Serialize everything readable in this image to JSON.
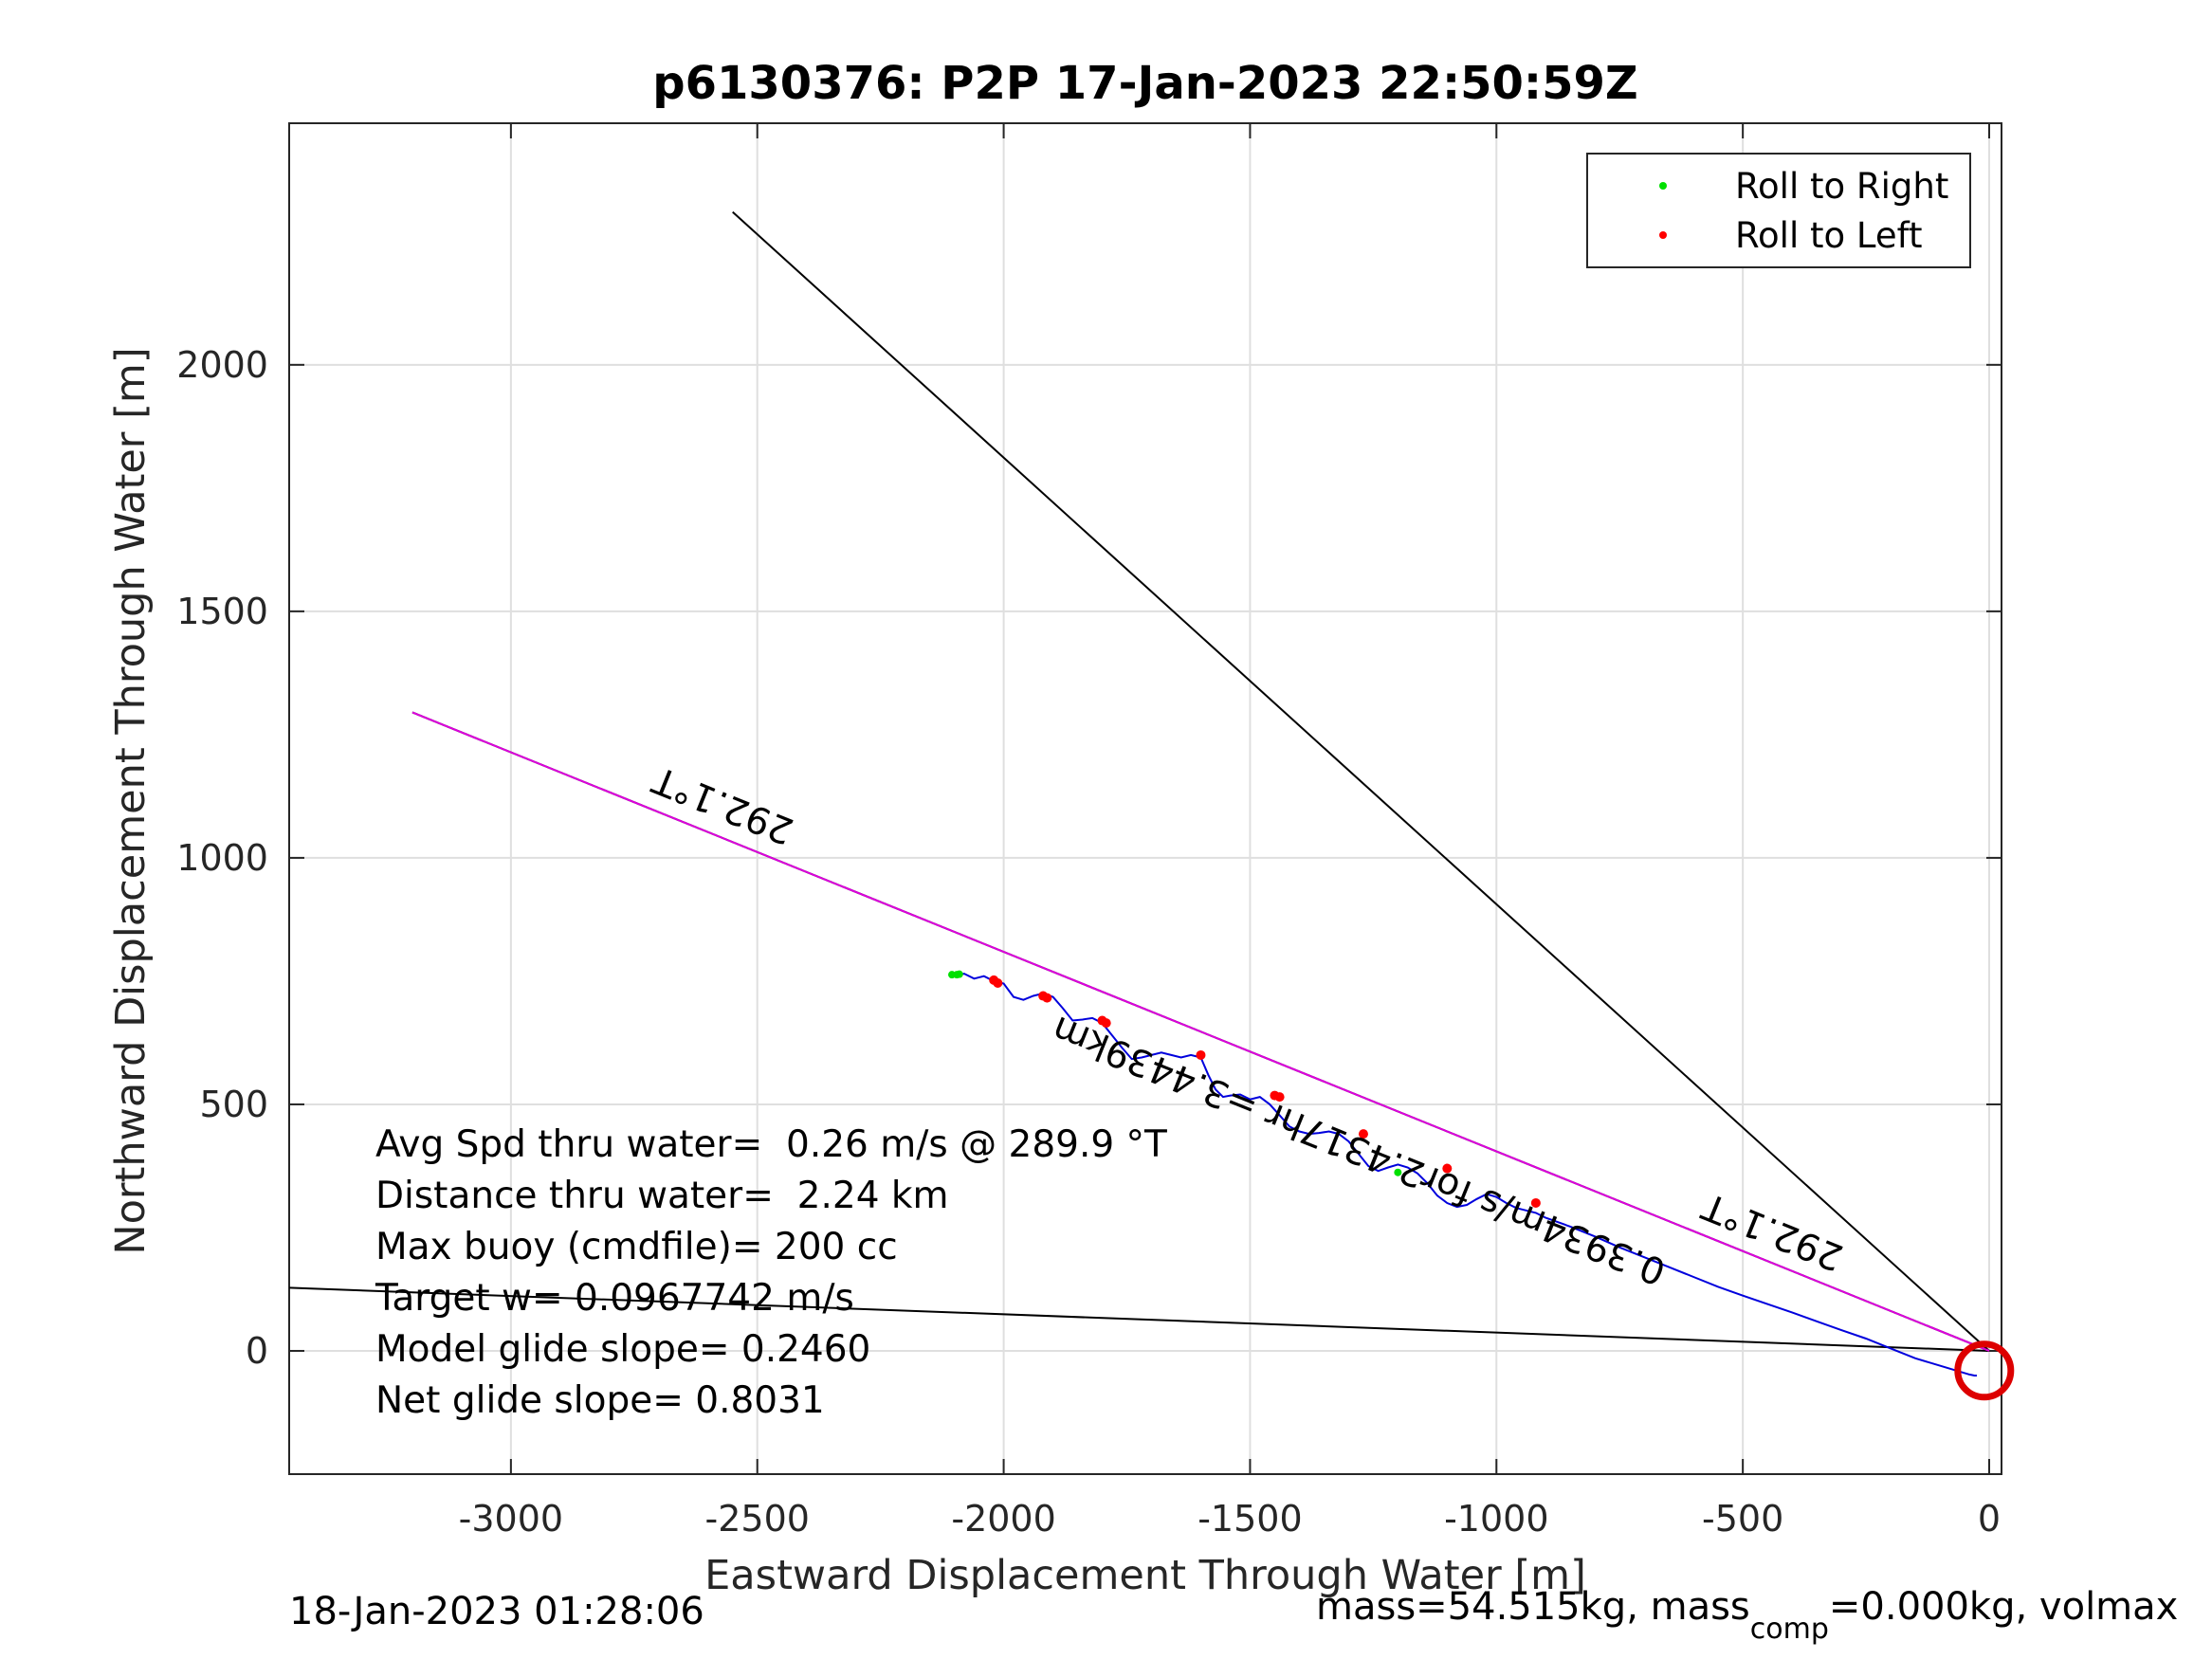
{
  "chart_data": {
    "type": "line",
    "title": "p6130376: P2P 17-Jan-2023 22:50:59Z",
    "xlabel": "Eastward Displacement Through Water [m]",
    "ylabel": "Northward Displacement Through Water [m]",
    "xlim": [
      -3450,
      25
    ],
    "ylim": [
      -250,
      2490
    ],
    "xticks": [
      -3000,
      -2500,
      -2000,
      -1500,
      -1000,
      -500,
      0
    ],
    "yticks": [
      0,
      500,
      1000,
      1500,
      2000
    ],
    "xtick_labels": [
      "-3000",
      "-2500",
      "-2000",
      "-1500",
      "-1000",
      "-500",
      "0"
    ],
    "ytick_labels": [
      "0",
      "500",
      "1000",
      "1500",
      "2000"
    ],
    "grid": true,
    "legend": {
      "placement": "top-right",
      "entries": [
        {
          "label": "Roll to Right",
          "color": "#00e000"
        },
        {
          "label": "Roll to Left",
          "color": "#ff0000"
        }
      ]
    },
    "reference_lines": [
      {
        "color": "#000000",
        "x": [
          0,
          -2550
        ],
        "y": [
          0,
          2310
        ]
      },
      {
        "color": "#000000",
        "x": [
          0,
          -3450
        ],
        "y": [
          0,
          128
        ]
      },
      {
        "color": "#000000",
        "x": [
          0,
          -3200
        ],
        "y": [
          0,
          1295
        ]
      },
      {
        "color": "#dd00dd",
        "x": [
          0,
          -3200
        ],
        "y": [
          0,
          1295
        ]
      }
    ],
    "track": {
      "color": "#0000dd",
      "x": [
        -2100,
        -2080,
        -2060,
        -2040,
        -2020,
        -2000,
        -1980,
        -1960,
        -1940,
        -1920,
        -1900,
        -1880,
        -1860,
        -1840,
        -1820,
        -1800,
        -1780,
        -1760,
        -1740,
        -1720,
        -1700,
        -1680,
        -1660,
        -1640,
        -1620,
        -1600,
        -1585,
        -1570,
        -1555,
        -1540,
        -1520,
        -1500,
        -1480,
        -1460,
        -1440,
        -1420,
        -1400,
        -1380,
        -1360,
        -1340,
        -1320,
        -1300,
        -1280,
        -1260,
        -1240,
        -1220,
        -1200,
        -1180,
        -1160,
        -1140,
        -1120,
        -1100,
        -1080,
        -1060,
        -1040,
        -1020,
        -1000,
        -980,
        -960,
        -940,
        -920,
        -900,
        -850,
        -800,
        -750,
        -700,
        -650,
        -600,
        -550,
        -500,
        -450,
        -400,
        -350,
        -300,
        -250,
        -200,
        -150,
        -100,
        -60,
        -40,
        -30,
        -25
      ],
      "y": [
        762,
        765,
        755,
        760,
        750,
        745,
        718,
        712,
        720,
        725,
        718,
        695,
        670,
        672,
        675,
        665,
        640,
        615,
        592,
        595,
        600,
        605,
        600,
        595,
        600,
        595,
        560,
        530,
        515,
        518,
        520,
        510,
        515,
        500,
        478,
        455,
        445,
        440,
        442,
        445,
        440,
        425,
        400,
        375,
        365,
        372,
        378,
        372,
        360,
        340,
        315,
        300,
        292,
        296,
        308,
        318,
        312,
        300,
        290,
        285,
        280,
        270,
        252,
        232,
        210,
        190,
        170,
        150,
        130,
        112,
        95,
        78,
        60,
        42,
        25,
        5,
        -15,
        -30,
        -42,
        -48,
        -50,
        -50
      ]
    },
    "roll_right_points": {
      "x": [
        -2105,
        -2095,
        -2090,
        -1200
      ],
      "y": [
        763,
        763,
        764,
        362
      ]
    },
    "roll_left_points": {
      "x": [
        -2020,
        -2012,
        -1920,
        -1912,
        -1800,
        -1792,
        -1600,
        -1450,
        -1440,
        -1270,
        -1100,
        -920
      ],
      "y": [
        752,
        746,
        720,
        716,
        670,
        665,
        600,
        518,
        515,
        440,
        370,
        300
      ]
    },
    "loop": {
      "center_x": -10,
      "center_y": -40,
      "radius": 28,
      "color": "#dd0000"
    },
    "heading_labels": [
      {
        "text": "292.1°T",
        "x": -2560,
        "y": 1130,
        "rotation": 22
      },
      {
        "text": "292.1°T",
        "x": -430,
        "y": 265,
        "rotation": 22
      }
    ],
    "route_label": {
      "text": "0.3934m/s for2.4317hr =3.4439km",
      "x": -1270,
      "y": 430,
      "rotation": 22
    },
    "annotations": [
      "Avg Spd thru water=  0.26 m/s @ 289.9 °T",
      "Distance thru water=  2.24 km",
      "Max buoy (cmdfile)= 200 cc",
      "Target w= 0.0967742 m/s",
      "Model glide slope= 0.2460",
      "Net glide slope= 0.8031"
    ],
    "footer_left": "18-Jan-2023 01:28:06",
    "footer_right_parts": [
      "mass=54.515kg, mass",
      "comp",
      "=0.000kg, volmax"
    ]
  }
}
